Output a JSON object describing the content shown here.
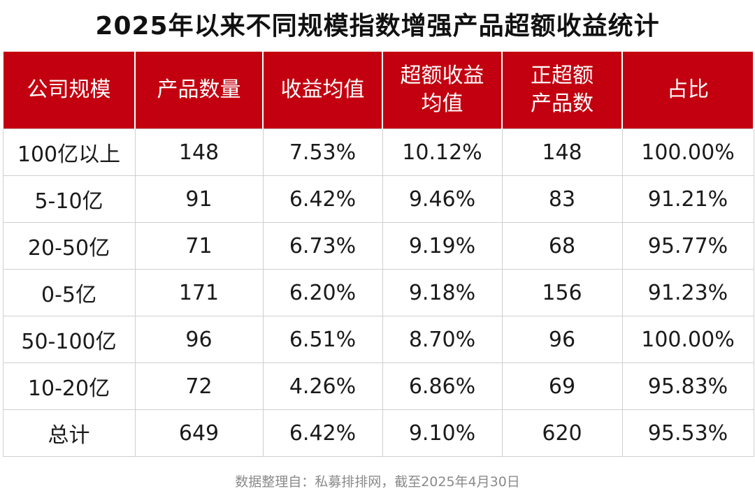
{
  "title": "2025年以来不同规模指数增强产品超额收益统计",
  "table": {
    "headers": [
      [
        "公司规模"
      ],
      [
        "产品数量"
      ],
      [
        "收益均值"
      ],
      [
        "超额收益",
        "均值"
      ],
      [
        "正超额",
        "产品数"
      ],
      [
        "占比"
      ]
    ],
    "rows": [
      [
        "100亿以上",
        "148",
        "7.53%",
        "10.12%",
        "148",
        "100.00%"
      ],
      [
        "5-10亿",
        "91",
        "6.42%",
        "9.46%",
        "83",
        "91.21%"
      ],
      [
        "20-50亿",
        "71",
        "6.73%",
        "9.19%",
        "68",
        "95.77%"
      ],
      [
        "0-5亿",
        "171",
        "6.20%",
        "9.18%",
        "156",
        "91.23%"
      ],
      [
        "50-100亿",
        "96",
        "6.51%",
        "8.70%",
        "96",
        "100.00%"
      ],
      [
        "10-20亿",
        "72",
        "4.26%",
        "6.86%",
        "69",
        "95.83%"
      ],
      [
        "总计",
        "649",
        "6.42%",
        "9.10%",
        "620",
        "95.53%"
      ]
    ]
  },
  "footer": "数据整理自：私募排排网，截至2025年4月30日",
  "colors": {
    "header_bg": "#c3000f",
    "header_text": "#ffffff",
    "grid_line": "#cfcfcf",
    "footer_text": "#8a8a8a"
  }
}
